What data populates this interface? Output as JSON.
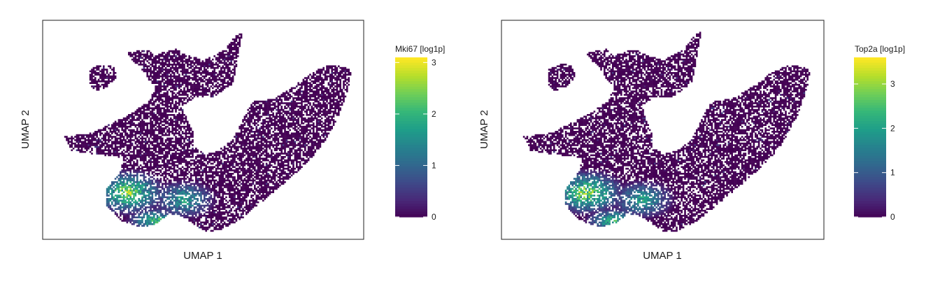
{
  "chart_data": [
    {
      "type": "scatter",
      "style": "hexbin",
      "xlabel": "UMAP 1",
      "ylabel": "UMAP 2",
      "legend_title": "Mki67 [log1p]",
      "legend_ticks": [
        0,
        1,
        2,
        3
      ],
      "color_range": [
        0,
        3.1
      ],
      "colormap": "viridis",
      "high_expression_region": "lower-left"
    },
    {
      "type": "scatter",
      "style": "hexbin",
      "xlabel": "UMAP 1",
      "ylabel": "UMAP 2",
      "legend_title": "Top2a [log1p]",
      "legend_ticks": [
        0,
        1,
        2,
        3
      ],
      "color_range": [
        0,
        3.6
      ],
      "colormap": "viridis",
      "high_expression_region": "lower-left"
    }
  ]
}
